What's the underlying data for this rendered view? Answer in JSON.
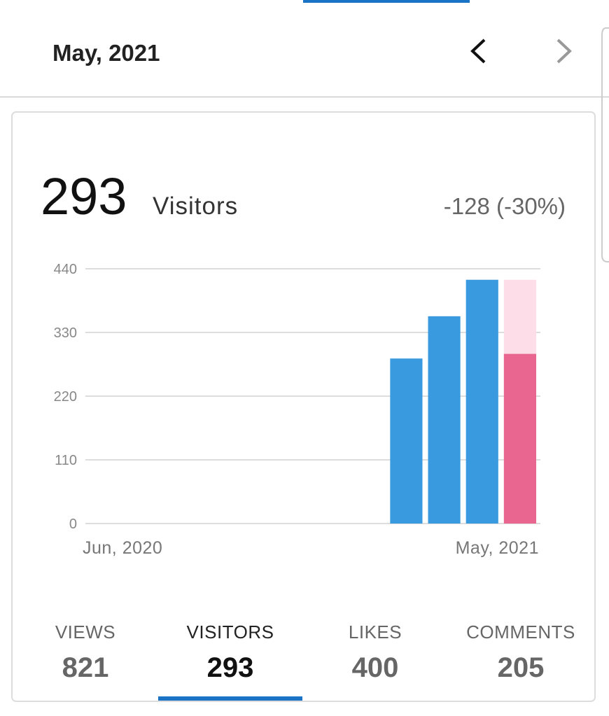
{
  "header": {
    "title": "May, 2021"
  },
  "summary": {
    "value": 293,
    "label": "Visitors",
    "change": "-128 (-30%)"
  },
  "chart_data": {
    "type": "bar",
    "categories": [
      "Jun, 2020",
      null,
      null,
      null,
      null,
      null,
      null,
      null,
      null,
      null,
      null,
      "May, 2021"
    ],
    "values": [
      0,
      0,
      0,
      0,
      0,
      0,
      0,
      0,
      285,
      358,
      421,
      293
    ],
    "colors": [
      "#3a9ae0",
      "#3a9ae0",
      "#3a9ae0",
      "#3a9ae0",
      "#3a9ae0",
      "#3a9ae0",
      "#3a9ae0",
      "#3a9ae0",
      "#3a9ae0",
      "#3a9ae0",
      "#3a9ae0",
      "#e8668f"
    ],
    "ghost_color": "#fcdde8",
    "ylim": [
      0,
      440
    ],
    "yticks": [
      0,
      110,
      220,
      330,
      440
    ],
    "grid": true
  },
  "stats": [
    {
      "label": "VIEWS",
      "value": 821
    },
    {
      "label": "VISITORS",
      "value": 293
    },
    {
      "label": "LIKES",
      "value": 400
    },
    {
      "label": "COMMENTS",
      "value": 205
    }
  ],
  "active_stat": 1
}
